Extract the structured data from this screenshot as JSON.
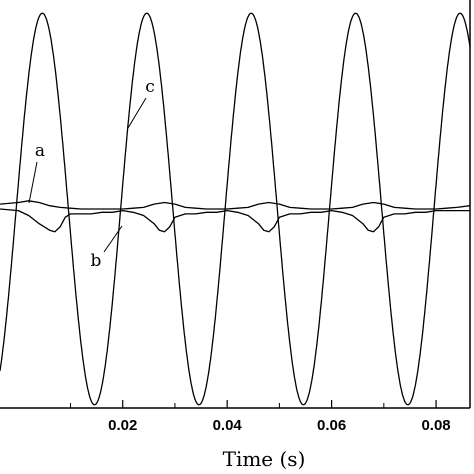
{
  "chart_data": {
    "type": "line",
    "xlabel": "Time  (s)",
    "ylabel": "",
    "xlim": [
      -0.0035,
      0.0865
    ],
    "ylim": [
      -1.22,
      1.22
    ],
    "x_ticks": [
      0.02,
      0.04,
      0.06,
      0.08
    ],
    "x_tick_labels": [
      "0.02",
      "0.04",
      "0.06",
      "0.08"
    ],
    "grid": false,
    "legend": "none",
    "series": [
      {
        "label": "a",
        "x": [
          -0.0035,
          0.0,
          0.002,
          0.004,
          0.006,
          0.008,
          0.01,
          0.012,
          0.014,
          0.016,
          0.018,
          0.02,
          0.022,
          0.024,
          0.026,
          0.028,
          0.03,
          0.032,
          0.034,
          0.036,
          0.038,
          0.04,
          0.042,
          0.044,
          0.046,
          0.048,
          0.05,
          0.052,
          0.054,
          0.056,
          0.058,
          0.06,
          0.062,
          0.064,
          0.066,
          0.068,
          0.07,
          0.072,
          0.074,
          0.076,
          0.078,
          0.08,
          0.082,
          0.084,
          0.0865
        ],
        "y": [
          0.03,
          0.04,
          0.05,
          0.04,
          0.02,
          0.01,
          0.005,
          0.0,
          0.0,
          0.0,
          0.0,
          0.0,
          0.005,
          0.01,
          0.03,
          0.04,
          0.03,
          0.01,
          0.005,
          0.0,
          0.0,
          0.0,
          0.005,
          0.01,
          0.03,
          0.04,
          0.03,
          0.01,
          0.005,
          0.0,
          0.0,
          0.0,
          0.005,
          0.01,
          0.03,
          0.04,
          0.03,
          0.01,
          0.005,
          0.0,
          0.0,
          0.0,
          0.005,
          0.01,
          0.02
        ]
      },
      {
        "label": "b",
        "x": [
          -0.0035,
          0.0,
          0.002,
          0.004,
          0.006,
          0.007,
          0.008,
          0.009,
          0.01,
          0.012,
          0.014,
          0.016,
          0.018,
          0.02,
          0.022,
          0.024,
          0.026,
          0.027,
          0.028,
          0.029,
          0.03,
          0.032,
          0.034,
          0.036,
          0.038,
          0.04,
          0.042,
          0.044,
          0.046,
          0.047,
          0.048,
          0.049,
          0.05,
          0.052,
          0.054,
          0.056,
          0.058,
          0.06,
          0.062,
          0.064,
          0.066,
          0.067,
          0.068,
          0.069,
          0.07,
          0.072,
          0.074,
          0.076,
          0.078,
          0.08,
          0.082,
          0.084,
          0.0865
        ],
        "y": [
          0.0,
          -0.01,
          -0.04,
          -0.09,
          -0.13,
          -0.14,
          -0.11,
          -0.05,
          -0.03,
          -0.03,
          -0.03,
          -0.02,
          -0.02,
          -0.01,
          -0.02,
          -0.04,
          -0.09,
          -0.13,
          -0.14,
          -0.11,
          -0.05,
          -0.03,
          -0.03,
          -0.02,
          -0.02,
          -0.01,
          -0.02,
          -0.04,
          -0.09,
          -0.13,
          -0.14,
          -0.11,
          -0.05,
          -0.03,
          -0.03,
          -0.02,
          -0.02,
          -0.01,
          -0.02,
          -0.04,
          -0.09,
          -0.13,
          -0.14,
          -0.11,
          -0.05,
          -0.03,
          -0.03,
          -0.02,
          -0.02,
          -0.01,
          -0.01,
          -0.01,
          -0.01
        ]
      },
      {
        "label": "c",
        "type": "sinusoid",
        "amplitude": 1.2,
        "period": 0.02,
        "peak_x": [
          0.0046,
          0.0246,
          0.0446,
          0.0646
        ],
        "trough_x": [
          0.0146,
          0.0346,
          0.0546,
          0.0746
        ],
        "x_range": [
          -0.0035,
          0.0865
        ]
      }
    ],
    "annotations": [
      "a",
      "b",
      "c"
    ]
  }
}
